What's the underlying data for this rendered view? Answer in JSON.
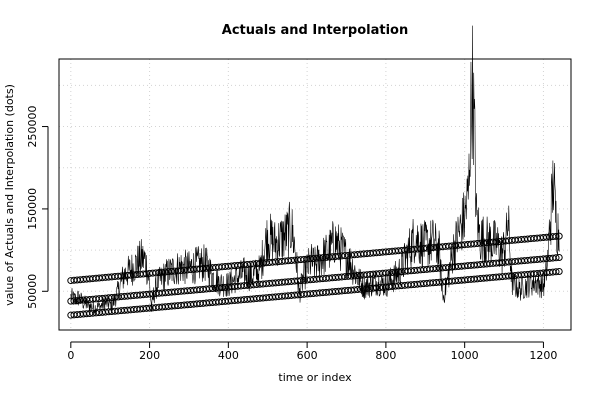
{
  "chart_data": {
    "type": "line",
    "title": "Actuals and Interpolation",
    "xlabel": "time or index",
    "ylabel": "value of Actuals and Interpolation (dots)",
    "xlim": [
      -30,
      1270
    ],
    "ylim": [
      3000,
      332000
    ],
    "x_ticks": [
      0,
      200,
      400,
      600,
      800,
      1000,
      1200
    ],
    "y_ticks": [
      50000,
      150000,
      250000
    ],
    "y_minor_gridlines": [
      100000,
      200000,
      300000
    ],
    "grid": true,
    "grid_style": "dotted",
    "series": [
      {
        "role": "actuals",
        "style": "line",
        "color": "#000000",
        "keypoints": {
          "x": [
            0,
            10,
            20,
            30,
            45,
            60,
            75,
            90,
            105,
            120,
            135,
            150,
            160,
            170,
            180,
            190,
            200,
            205,
            210,
            220,
            240,
            260,
            280,
            300,
            320,
            340,
            350,
            365,
            380,
            400,
            420,
            440,
            460,
            480,
            490,
            500,
            510,
            520,
            535,
            550,
            560,
            570,
            580,
            590,
            600,
            610,
            620,
            635,
            650,
            660,
            670,
            680,
            695,
            710,
            720,
            730,
            745,
            760,
            780,
            800,
            820,
            840,
            860,
            875,
            885,
            900,
            920,
            935,
            945,
            955,
            970,
            985,
            1000,
            1010,
            1015,
            1020,
            1025,
            1030,
            1040,
            1055,
            1070,
            1085,
            1095,
            1105,
            1110,
            1120,
            1140,
            1160,
            1180,
            1200,
            1210,
            1215,
            1222,
            1226,
            1230,
            1235,
            1240
          ],
          "y": [
            43000,
            40000,
            42000,
            37000,
            33000,
            30000,
            32000,
            36000,
            33000,
            50000,
            70000,
            75000,
            80000,
            85000,
            90000,
            87000,
            60000,
            28000,
            45000,
            60000,
            70000,
            76000,
            80000,
            78000,
            82000,
            84000,
            78000,
            64000,
            60000,
            58000,
            66000,
            72000,
            68000,
            75000,
            100000,
            118000,
            112000,
            108000,
            114000,
            120000,
            128000,
            100000,
            46000,
            66000,
            78000,
            86000,
            82000,
            90000,
            96000,
            102000,
            112000,
            105000,
            95000,
            85000,
            75000,
            65000,
            55000,
            58000,
            62000,
            58000,
            66000,
            78000,
            102000,
            118000,
            110000,
            106000,
            110000,
            98000,
            42000,
            60000,
            98000,
            120000,
            140000,
            170000,
            260000,
            300000,
            240000,
            138000,
            115000,
            112000,
            110000,
            105000,
            95000,
            110000,
            138000,
            60000,
            52000,
            58000,
            62000,
            56000,
            82000,
            120000,
            162000,
            190000,
            145000,
            128000,
            120000
          ]
        }
      },
      {
        "role": "interpolation",
        "style": "points",
        "marker": "open-circle",
        "color": "#000000",
        "x_start": 0,
        "x_end": 1240,
        "y_start": 63000,
        "y_end": 117000
      },
      {
        "role": "interpolation",
        "style": "points",
        "marker": "open-circle",
        "color": "#000000",
        "x_start": 0,
        "x_end": 1240,
        "y_start": 38000,
        "y_end": 91000
      },
      {
        "role": "interpolation",
        "style": "points",
        "marker": "open-circle",
        "color": "#000000",
        "x_start": 0,
        "x_end": 1240,
        "y_start": 21000,
        "y_end": 74000
      }
    ]
  }
}
